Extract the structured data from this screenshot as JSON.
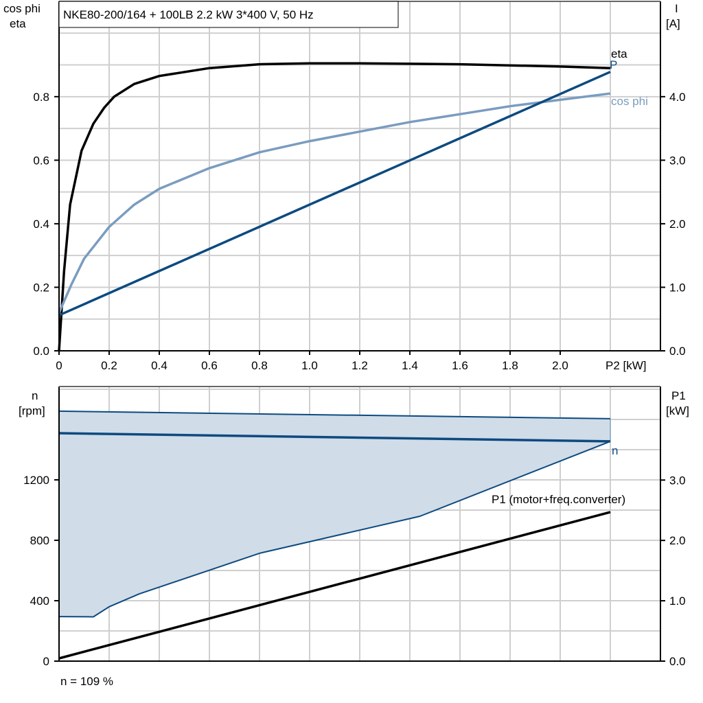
{
  "chart_data": [
    {
      "type": "line",
      "title": "NKE80-200/164 + 100LB   2.2 kW   3*400 V, 50 Hz",
      "xlabel": "P2 [kW]",
      "ylabel_left": [
        "cos phi",
        "eta"
      ],
      "ylabel_right": [
        "I",
        "[A]"
      ],
      "xlim": [
        0,
        2.4
      ],
      "ylim_left": [
        0,
        1.1
      ],
      "ylim_right": [
        0,
        5.5
      ],
      "x_ticks": [
        "0",
        "0.2",
        "0.4",
        "0.6",
        "0.8",
        "1.0",
        "1.2",
        "1.4",
        "1.6",
        "1.8",
        "2.0"
      ],
      "y_ticks_left": [
        "0.0",
        "0.2",
        "0.4",
        "0.6",
        "0.8"
      ],
      "y_ticks_right": [
        "0.0",
        "1.0",
        "2.0",
        "3.0",
        "4.0"
      ],
      "grid": true,
      "series": [
        {
          "name": "eta",
          "axis": "left",
          "color": "#000000",
          "x": [
            0,
            0.02,
            0.044,
            0.09,
            0.137,
            0.18,
            0.22,
            0.3,
            0.4,
            0.6,
            0.8,
            1.0,
            1.2,
            1.6,
            2.0,
            2.2
          ],
          "y": [
            0,
            0.25,
            0.46,
            0.63,
            0.715,
            0.765,
            0.8,
            0.84,
            0.865,
            0.89,
            0.902,
            0.905,
            0.905,
            0.902,
            0.895,
            0.89
          ]
        },
        {
          "name": "cos phi",
          "axis": "left",
          "color": "#7a9cbf",
          "x": [
            0,
            0.05,
            0.1,
            0.2,
            0.3,
            0.4,
            0.6,
            0.8,
            1.0,
            1.2,
            1.4,
            1.6,
            1.8,
            2.0,
            2.2
          ],
          "y": [
            0.12,
            0.21,
            0.29,
            0.39,
            0.46,
            0.51,
            0.575,
            0.625,
            0.66,
            0.69,
            0.72,
            0.745,
            0.77,
            0.79,
            0.81
          ]
        },
        {
          "name": "I",
          "label": "P",
          "axis": "right",
          "color": "#0d4a80",
          "x": [
            0,
            2.2
          ],
          "y": [
            0.56,
            4.39
          ]
        }
      ]
    },
    {
      "type": "area",
      "xlim": [
        0,
        2.4
      ],
      "ylabel_left": [
        "n",
        "[rpm]"
      ],
      "ylabel_right": [
        "P1",
        "[kW]"
      ],
      "ylim_left": [
        0,
        1818
      ],
      "ylim_right": [
        0,
        4.55
      ],
      "y_ticks_left": [
        "0",
        "400",
        "800",
        "1200"
      ],
      "y_ticks_right": [
        "0.0",
        "1.0",
        "2.0",
        "3.0"
      ],
      "grid": true,
      "fill_color": "#d0dce7",
      "series": [
        {
          "name": "n max",
          "axis": "left",
          "color": "#0d4a80",
          "x": [
            0,
            2.2
          ],
          "y": [
            1655,
            1605
          ]
        },
        {
          "name": "n",
          "axis": "left",
          "color": "#0d4a80",
          "x": [
            0,
            2.2
          ],
          "y": [
            1509,
            1455
          ]
        },
        {
          "name": "n min",
          "axis": "left",
          "color": "#0d4a80",
          "x": [
            0,
            0.137,
            0.2,
            0.32,
            0.8,
            1.44,
            2.2
          ],
          "y": [
            295,
            293,
            360,
            445,
            714,
            959,
            1455
          ]
        },
        {
          "name": "P1 (motor+freq.converter)",
          "axis": "right",
          "color": "#000000",
          "x": [
            0,
            2.2
          ],
          "y": [
            0.045,
            2.47
          ]
        }
      ],
      "footnote": "n = 109 %"
    }
  ]
}
